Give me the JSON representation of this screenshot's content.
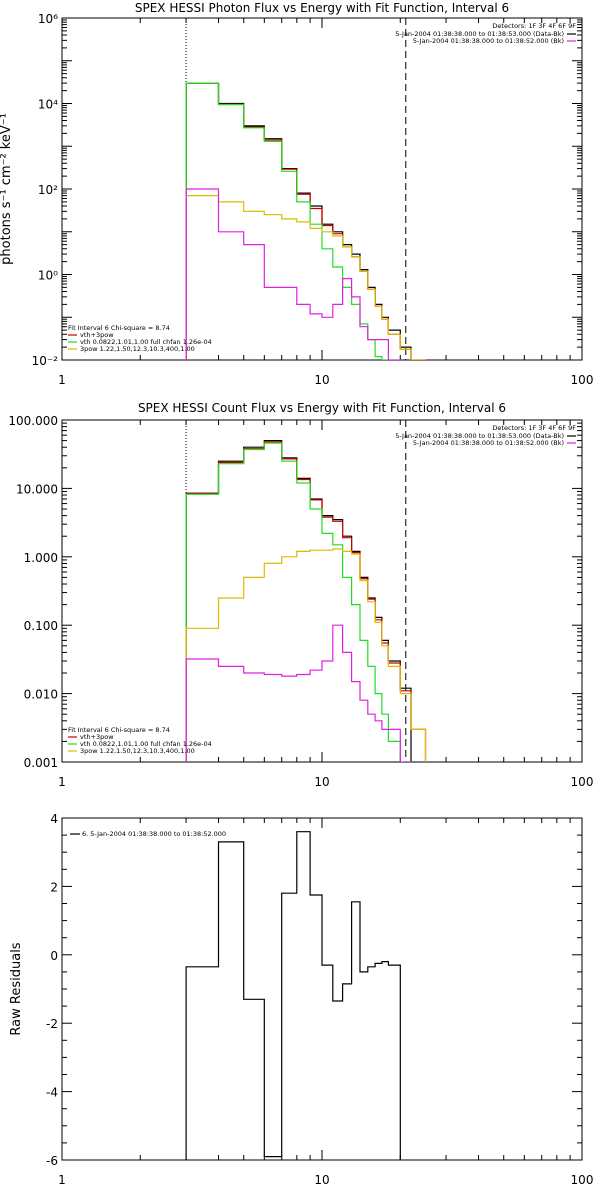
{
  "chart_data": [
    {
      "type": "line",
      "title": "SPEX HESSI Photon Flux vs Energy with Fit Function, Interval 6",
      "ylabel": "photons s⁻¹ cm⁻² keV⁻¹",
      "xlabel": "",
      "x_scale": "log",
      "y_scale": "log",
      "xlim": [
        1,
        100
      ],
      "ylim": [
        0.01,
        1000000
      ],
      "x_ticks": [
        1,
        10,
        100
      ],
      "x_tick_labels": [
        "1",
        "10",
        "100"
      ],
      "y_ticks": [
        0.01,
        1,
        100,
        10000,
        1000000
      ],
      "y_tick_labels": [
        "10⁻²",
        "10⁰",
        "10²",
        "10⁴",
        "10⁶"
      ],
      "vlines": [
        {
          "x": 3,
          "style": "dotted"
        },
        {
          "x": 21,
          "style": "dashed"
        }
      ],
      "legend_right": {
        "title": "Detectors: 1F 3F 4F 6F 9F",
        "entries": [
          {
            "label": "5-Jan-2004 01:38:38.000 to 01:38:53.000 (Data-Bk)",
            "color": "#000000"
          },
          {
            "label": "5-Jan-2004 01:38:38.000 to 01:38:52.000 (Bk)",
            "color": "#e020e0"
          }
        ]
      },
      "legend_left": {
        "title": "Fit Interval 6   Chi-square = 8.74",
        "entries": [
          {
            "label": "vth+3pow",
            "color": "#cc0000"
          },
          {
            "label": "vth 0.0822,1.01,1.00  full chfan 1.26e-04",
            "color": "#22dd22"
          },
          {
            "label": "3pow 1.22,1.50,12.3,10.3,400,1.00",
            "color": "#ddbb00"
          }
        ]
      },
      "bin_edges": [
        3,
        4,
        5,
        6,
        7,
        8,
        9,
        10,
        11,
        12,
        13,
        14,
        15,
        16,
        17,
        18,
        20,
        22,
        25
      ],
      "series": [
        {
          "name": "Data-Bk",
          "color": "#000000",
          "values": [
            30000,
            10000,
            3000,
            1500,
            300,
            80,
            40,
            15,
            10,
            5,
            3,
            1.3,
            0.5,
            0.2,
            0.1,
            0.05,
            0.02,
            null
          ]
        },
        {
          "name": "vth+3pow",
          "color": "#cc0000",
          "values": [
            30000,
            9500,
            2800,
            1400,
            290,
            75,
            35,
            14,
            9,
            4.5,
            2.6,
            1.2,
            0.45,
            0.18,
            0.09,
            0.04,
            0.018,
            0.01
          ]
        },
        {
          "name": "vth",
          "color": "#22dd22",
          "values": [
            30000,
            9500,
            2700,
            1300,
            260,
            50,
            15,
            4,
            1.5,
            0.5,
            0.2,
            0.07,
            0.03,
            0.012,
            0.01,
            null,
            null,
            null
          ]
        },
        {
          "name": "3pow",
          "color": "#ddbb00",
          "values": [
            70,
            50,
            30,
            25,
            20,
            17,
            12,
            10,
            8,
            4.5,
            2.6,
            1.2,
            0.45,
            0.18,
            0.09,
            0.04,
            0.018,
            0.01
          ]
        },
        {
          "name": "Bk",
          "color": "#e020e0",
          "values": [
            100,
            10,
            5,
            0.5,
            0.5,
            0.2,
            0.12,
            0.1,
            0.2,
            0.8,
            0.3,
            0.06,
            0.03,
            0.03,
            0.03,
            0.01,
            null,
            null
          ]
        }
      ]
    },
    {
      "type": "line",
      "title": "SPEX HESSI Count Flux vs Energy with Fit Function, Interval 6",
      "ylabel": "",
      "xlabel": "",
      "x_scale": "log",
      "y_scale": "log",
      "xlim": [
        1,
        100
      ],
      "ylim": [
        0.001,
        100
      ],
      "x_ticks": [
        1,
        10,
        100
      ],
      "x_tick_labels": [
        "1",
        "10",
        "100"
      ],
      "y_ticks": [
        0.001,
        0.01,
        0.1,
        1,
        10,
        100
      ],
      "y_tick_labels": [
        "0.001",
        "0.010",
        "0.100",
        "1.000",
        "10.000",
        "100.000"
      ],
      "vlines": [
        {
          "x": 3,
          "style": "dotted"
        },
        {
          "x": 21,
          "style": "dashed"
        }
      ],
      "legend_right": {
        "title": "Detectors: 1F 3F 4F 6F 9F",
        "entries": [
          {
            "label": "5-Jan-2004 01:38:38.000 to 01:38:53.000 (Data-Bk)",
            "color": "#000000"
          },
          {
            "label": "5-Jan-2004 01:38:38.000 to 01:38:52.000 (Bk)",
            "color": "#e020e0"
          }
        ]
      },
      "legend_left": {
        "title": "Fit Interval 6   Chi-square = 8.74",
        "entries": [
          {
            "label": "vth+3pow",
            "color": "#cc0000"
          },
          {
            "label": "vth 0.0822,1.01,1.00  full chfan 1.26e-04",
            "color": "#22dd22"
          },
          {
            "label": "3pow 1.22,1.50,12.3,10.3,400,1.00",
            "color": "#ddbb00"
          }
        ]
      },
      "bin_edges": [
        3,
        4,
        5,
        6,
        7,
        8,
        9,
        10,
        11,
        12,
        13,
        14,
        15,
        16,
        17,
        18,
        20,
        22,
        25
      ],
      "series": [
        {
          "name": "Data-Bk",
          "color": "#000000",
          "values": [
            8.5,
            25,
            40,
            50,
            28,
            14,
            7,
            4,
            3.5,
            2,
            1.2,
            0.5,
            0.25,
            0.13,
            0.06,
            0.03,
            0.012,
            null
          ]
        },
        {
          "name": "vth+3pow",
          "color": "#cc0000",
          "values": [
            8.4,
            24,
            38,
            48,
            27,
            13.5,
            6.8,
            3.8,
            3.3,
            1.9,
            1.15,
            0.48,
            0.24,
            0.12,
            0.055,
            0.028,
            0.011,
            0.003
          ]
        },
        {
          "name": "vth",
          "color": "#22dd22",
          "values": [
            8.2,
            23,
            37,
            46,
            25,
            12,
            5,
            2.2,
            1.5,
            0.5,
            0.2,
            0.06,
            0.025,
            0.01,
            0.005,
            0.002,
            null,
            null
          ]
        },
        {
          "name": "3pow",
          "color": "#ddbb00",
          "values": [
            0.09,
            0.25,
            0.5,
            0.8,
            1.0,
            1.2,
            1.25,
            1.25,
            1.3,
            1.2,
            1.1,
            0.45,
            0.22,
            0.11,
            0.05,
            0.025,
            0.01,
            0.003
          ]
        },
        {
          "name": "Bk",
          "color": "#e020e0",
          "values": [
            0.032,
            0.025,
            0.02,
            0.019,
            0.018,
            0.019,
            0.022,
            0.03,
            0.1,
            0.04,
            0.015,
            0.008,
            0.005,
            0.004,
            0.003,
            0.003,
            0.001,
            null
          ]
        }
      ]
    },
    {
      "type": "line",
      "title": "",
      "ylabel": "Raw Residuals",
      "xlabel": "",
      "x_scale": "log",
      "y_scale": "linear",
      "xlim": [
        1,
        100
      ],
      "ylim": [
        -6,
        4
      ],
      "x_ticks": [
        1,
        10,
        100
      ],
      "x_tick_labels": [
        "1",
        "10",
        "100"
      ],
      "y_ticks": [
        -6,
        -4,
        -2,
        0,
        2,
        4
      ],
      "y_tick_labels": [
        "-6",
        "-4",
        "-2",
        "0",
        "2",
        "4"
      ],
      "legend": {
        "entries": [
          {
            "label": "6. 5-Jan-2004 01:38:38.000 to 01:38:52.000",
            "color": "#000000"
          }
        ]
      },
      "bin_edges": [
        3,
        4,
        5,
        6,
        7,
        8,
        9,
        10,
        11,
        12,
        13,
        14,
        15,
        16,
        17,
        18,
        20
      ],
      "series": [
        {
          "name": "",
          "color": "#000000",
          "values": [
            -0.35,
            3.3,
            -1.3,
            -5.9,
            1.8,
            3.6,
            1.75,
            -0.3,
            -1.35,
            -0.85,
            1.55,
            -0.5,
            -0.35,
            -0.25,
            -0.2,
            -0.3
          ]
        }
      ]
    }
  ]
}
